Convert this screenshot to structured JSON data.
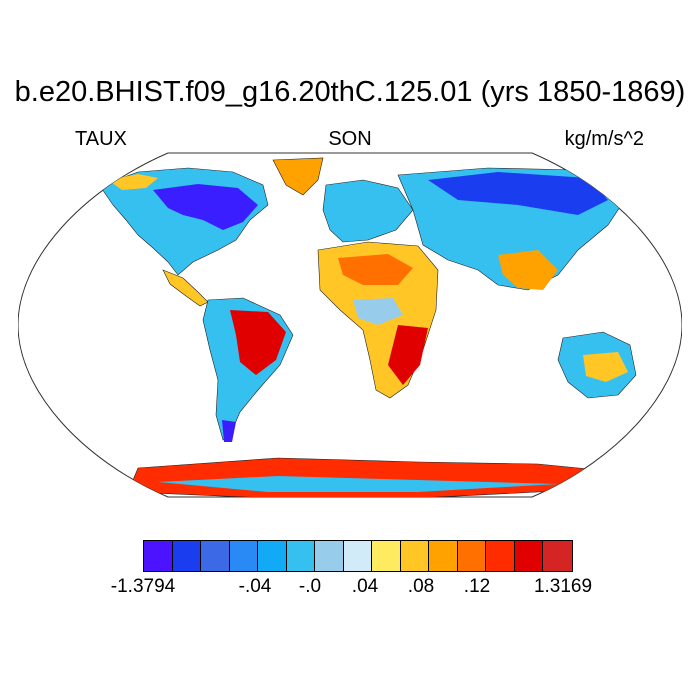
{
  "title": "b.e20.BHIST.f09_g16.20thC.125.01 (yrs 1850-1869)",
  "left_label": "TAUX",
  "center_label": "SON",
  "right_label": "kg/m/s^2",
  "colorbar": {
    "colors": [
      "#4b13ff",
      "#1a3df0",
      "#3c6ae6",
      "#2a8af5",
      "#12aaf5",
      "#36c0f0",
      "#97cdea",
      "#d2ebf8",
      "#ffeb60",
      "#ffc626",
      "#ffa200",
      "#ff7000",
      "#ff2c00",
      "#e00000",
      "#d42424"
    ],
    "tick_labels": [
      "-1.3794",
      "-.04",
      "-.0",
      ".04",
      ".08",
      ".12",
      "1.3169"
    ]
  }
}
